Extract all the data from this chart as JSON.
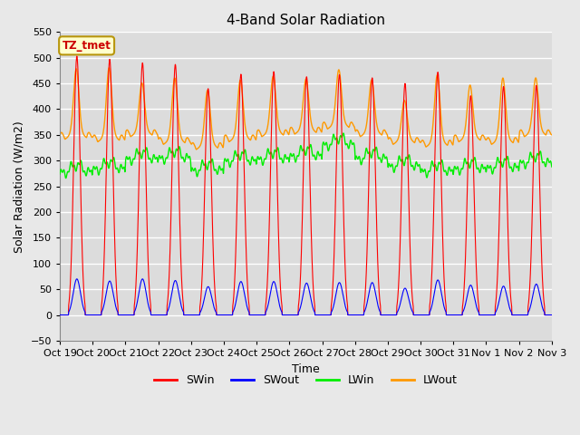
{
  "title": "4-Band Solar Radiation",
  "xlabel": "Time",
  "ylabel": "Solar Radiation (W/m2)",
  "ylim": [
    -50,
    550
  ],
  "background_color": "#e8e8e8",
  "plot_bg_color": "#dcdcdc",
  "grid_color": "#ffffff",
  "annotation_text": "TZ_tmet",
  "annotation_bg": "#ffffcc",
  "annotation_border": "#b8960c",
  "annotation_text_color": "#cc0000",
  "colors": {
    "SWin": "#ff0000",
    "SWout": "#0000ff",
    "LWin": "#00ee00",
    "LWout": "#ff9900"
  },
  "num_days": 15,
  "tick_labels": [
    "Oct 19",
    "Oct 20",
    "Oct 21",
    "Oct 22",
    "Oct 23",
    "Oct 24",
    "Oct 25",
    "Oct 26",
    "Oct 27",
    "Oct 28",
    "Oct 29",
    "Oct 30",
    "Oct 31",
    "Nov 1",
    "Nov 2",
    "Nov 3"
  ],
  "peak_SWin": [
    503,
    497,
    490,
    487,
    440,
    468,
    473,
    463,
    467,
    461,
    450,
    472,
    426,
    444,
    446
  ],
  "peak_SWout": [
    70,
    66,
    70,
    67,
    55,
    65,
    65,
    62,
    63,
    63,
    52,
    68,
    58,
    56,
    60
  ],
  "lwin_base": [
    272,
    278,
    297,
    299,
    275,
    293,
    297,
    303,
    325,
    298,
    283,
    273,
    278,
    280,
    290
  ],
  "lwout_base": [
    355,
    350,
    360,
    345,
    335,
    350,
    360,
    365,
    375,
    360,
    345,
    340,
    350,
    345,
    360
  ],
  "lwout_peak": [
    480,
    482,
    452,
    462,
    438,
    458,
    465,
    460,
    478,
    458,
    418,
    468,
    448,
    462,
    462
  ]
}
